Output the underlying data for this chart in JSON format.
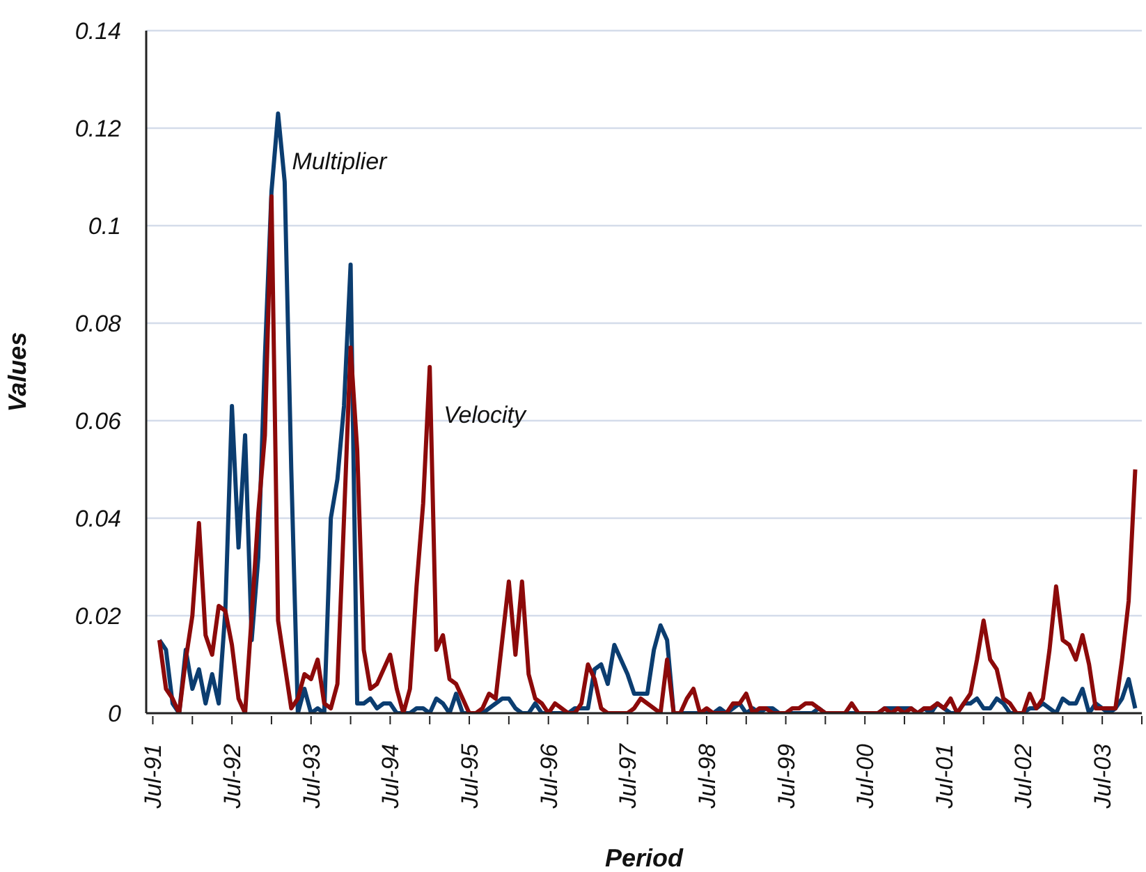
{
  "chart_data": {
    "type": "line",
    "xlabel": "Period",
    "ylabel": "Values",
    "grid": "y",
    "marker": "none",
    "line_style": "solid",
    "xlim": [
      "1991-06",
      "2004-01"
    ],
    "xticks": [
      {
        "value": "1991-07",
        "label": "Jul-91"
      },
      {
        "value": "1992-01",
        "label": null
      },
      {
        "value": "1992-07",
        "label": "Jul-92"
      },
      {
        "value": "1993-01",
        "label": null
      },
      {
        "value": "1993-07",
        "label": "Jul-93"
      },
      {
        "value": "1994-01",
        "label": null
      },
      {
        "value": "1994-07",
        "label": "Jul-94"
      },
      {
        "value": "1995-01",
        "label": null
      },
      {
        "value": "1995-07",
        "label": "Jul-95"
      },
      {
        "value": "1996-01",
        "label": null
      },
      {
        "value": "1996-07",
        "label": "Jul-96"
      },
      {
        "value": "1997-01",
        "label": null
      },
      {
        "value": "1997-07",
        "label": "Jul-97"
      },
      {
        "value": "1998-01",
        "label": null
      },
      {
        "value": "1998-07",
        "label": "Jul-98"
      },
      {
        "value": "1999-01",
        "label": null
      },
      {
        "value": "1999-07",
        "label": "Jul-99"
      },
      {
        "value": "2000-01",
        "label": null
      },
      {
        "value": "2000-07",
        "label": "Jul-00"
      },
      {
        "value": "2001-01",
        "label": null
      },
      {
        "value": "2001-07",
        "label": "Jul-01"
      },
      {
        "value": "2002-01",
        "label": null
      },
      {
        "value": "2002-07",
        "label": "Jul-02"
      },
      {
        "value": "2003-01",
        "label": null
      },
      {
        "value": "2003-07",
        "label": "Jul-03"
      },
      {
        "value": "2004-01",
        "label": null
      }
    ],
    "ylim": [
      0,
      0.14
    ],
    "yticks": [
      0,
      0.02,
      0.04,
      0.06,
      0.08,
      0.1,
      0.12,
      0.14
    ],
    "x": [
      "1991-08",
      "1991-09",
      "1991-10",
      "1991-11",
      "1991-12",
      "1992-01",
      "1992-02",
      "1992-03",
      "1992-04",
      "1992-05",
      "1992-06",
      "1992-07",
      "1992-08",
      "1992-09",
      "1992-10",
      "1992-11",
      "1992-12",
      "1993-01",
      "1993-02",
      "1993-03",
      "1993-04",
      "1993-05",
      "1993-06",
      "1993-07",
      "1993-08",
      "1993-09",
      "1993-10",
      "1993-11",
      "1993-12",
      "1994-01",
      "1994-02",
      "1994-03",
      "1994-04",
      "1994-05",
      "1994-06",
      "1994-07",
      "1994-08",
      "1994-09",
      "1994-10",
      "1994-11",
      "1994-12",
      "1995-01",
      "1995-02",
      "1995-03",
      "1995-04",
      "1995-05",
      "1995-06",
      "1995-07",
      "1995-08",
      "1995-09",
      "1995-10",
      "1995-11",
      "1995-12",
      "1996-01",
      "1996-02",
      "1996-03",
      "1996-04",
      "1996-05",
      "1996-06",
      "1996-07",
      "1996-08",
      "1996-09",
      "1996-10",
      "1996-11",
      "1996-12",
      "1997-01",
      "1997-02",
      "1997-03",
      "1997-04",
      "1997-05",
      "1997-06",
      "1997-07",
      "1997-08",
      "1997-09",
      "1997-10",
      "1997-11",
      "1997-12",
      "1998-01",
      "1998-02",
      "1998-03",
      "1998-04",
      "1998-05",
      "1998-06",
      "1998-07",
      "1998-08",
      "1998-09",
      "1998-10",
      "1998-11",
      "1998-12",
      "1999-01",
      "1999-02",
      "1999-03",
      "1999-04",
      "1999-05",
      "1999-06",
      "1999-07",
      "1999-08",
      "1999-09",
      "1999-10",
      "1999-11",
      "1999-12",
      "2000-01",
      "2000-02",
      "2000-03",
      "2000-04",
      "2000-05",
      "2000-06",
      "2000-07",
      "2000-08",
      "2000-09",
      "2000-10",
      "2000-11",
      "2000-12",
      "2001-01",
      "2001-02",
      "2001-03",
      "2001-04",
      "2001-05",
      "2001-06",
      "2001-07",
      "2001-08",
      "2001-09",
      "2001-10",
      "2001-11",
      "2001-12",
      "2002-01",
      "2002-02",
      "2002-03",
      "2002-04",
      "2002-05",
      "2002-06",
      "2002-07",
      "2002-08",
      "2002-09",
      "2002-10",
      "2002-11",
      "2002-12",
      "2003-01",
      "2003-02",
      "2003-03",
      "2003-04",
      "2003-05",
      "2003-06",
      "2003-07",
      "2003-08",
      "2003-09",
      "2003-10",
      "2003-11",
      "2003-12"
    ],
    "series": [
      {
        "name": "Multiplier",
        "color": "#0b3d70",
        "values": [
          0.015,
          0.013,
          0.002,
          0,
          0.013,
          0.005,
          0.009,
          0.002,
          0.008,
          0.002,
          0.021,
          0.063,
          0.034,
          0.057,
          0.015,
          0.032,
          0.073,
          0.107,
          0.123,
          0.109,
          0.05,
          0,
          0.005,
          0,
          0.001,
          0,
          0.04,
          0.048,
          0.063,
          0.092,
          0.002,
          0.002,
          0.003,
          0.001,
          0.002,
          0.002,
          0,
          0,
          0,
          0.001,
          0.001,
          0,
          0.003,
          0.002,
          0,
          0.004,
          0,
          0,
          0,
          0,
          0.001,
          0.002,
          0.003,
          0.003,
          0.001,
          0,
          0,
          0.002,
          0,
          0,
          0,
          0,
          0,
          0.001,
          0.001,
          0.001,
          0.009,
          0.01,
          0.006,
          0.014,
          0.011,
          0.008,
          0.004,
          0.004,
          0.004,
          0.013,
          0.018,
          0.015,
          0,
          0,
          0,
          0,
          0,
          0,
          0,
          0.001,
          0,
          0.001,
          0.002,
          0,
          0.001,
          0,
          0.001,
          0.001,
          0,
          0,
          0,
          0,
          0,
          0,
          0.001,
          0,
          0,
          0,
          0,
          0,
          0,
          0,
          0,
          0,
          0.001,
          0.001,
          0.001,
          0.001,
          0.001,
          0,
          0.001,
          0,
          0.002,
          0.001,
          0,
          0,
          0.002,
          0.002,
          0.003,
          0.001,
          0.001,
          0.003,
          0.002,
          0,
          0,
          0,
          0.001,
          0.001,
          0.002,
          0.001,
          0,
          0.003,
          0.002,
          0.002,
          0.005,
          0,
          0.002,
          0.001,
          0,
          0.001,
          0.003,
          0.007,
          0.001
        ]
      },
      {
        "name": "Velocity",
        "color": "#8c0a0a",
        "values": [
          0.015,
          0.005,
          0.003,
          0,
          0.011,
          0.02,
          0.039,
          0.016,
          0.012,
          0.022,
          0.021,
          0.014,
          0.003,
          0,
          0.02,
          0.041,
          0.057,
          0.106,
          0.019,
          0.01,
          0.001,
          0.003,
          0.008,
          0.007,
          0.011,
          0.002,
          0.001,
          0.006,
          0.04,
          0.075,
          0.054,
          0.013,
          0.005,
          0.006,
          0.009,
          0.012,
          0.005,
          0,
          0.005,
          0.026,
          0.043,
          0.071,
          0.013,
          0.016,
          0.007,
          0.006,
          0.003,
          0,
          0,
          0.001,
          0.004,
          0.003,
          0.015,
          0.027,
          0.012,
          0.027,
          0.008,
          0.003,
          0.002,
          0,
          0.002,
          0.001,
          0,
          0,
          0.002,
          0.01,
          0.007,
          0.001,
          0,
          0,
          0,
          0,
          0.001,
          0.003,
          0.002,
          0.001,
          0,
          0.011,
          0,
          0,
          0.003,
          0.005,
          0,
          0.001,
          0,
          0,
          0,
          0.002,
          0.002,
          0.004,
          0,
          0.001,
          0.001,
          0,
          0,
          0,
          0.001,
          0.001,
          0.002,
          0.002,
          0.001,
          0,
          0,
          0,
          0,
          0.002,
          0,
          0,
          0,
          0,
          0.001,
          0,
          0.001,
          0,
          0.001,
          0,
          0.001,
          0.001,
          0.002,
          0.001,
          0.003,
          0,
          0.002,
          0.004,
          0.011,
          0.019,
          0.011,
          0.009,
          0.003,
          0.002,
          0,
          0,
          0.004,
          0.001,
          0.003,
          0.013,
          0.026,
          0.015,
          0.014,
          0.011,
          0.016,
          0.01,
          0.001,
          0.001,
          0.001,
          0.001,
          0.011,
          0.023,
          0.05
        ]
      }
    ]
  }
}
